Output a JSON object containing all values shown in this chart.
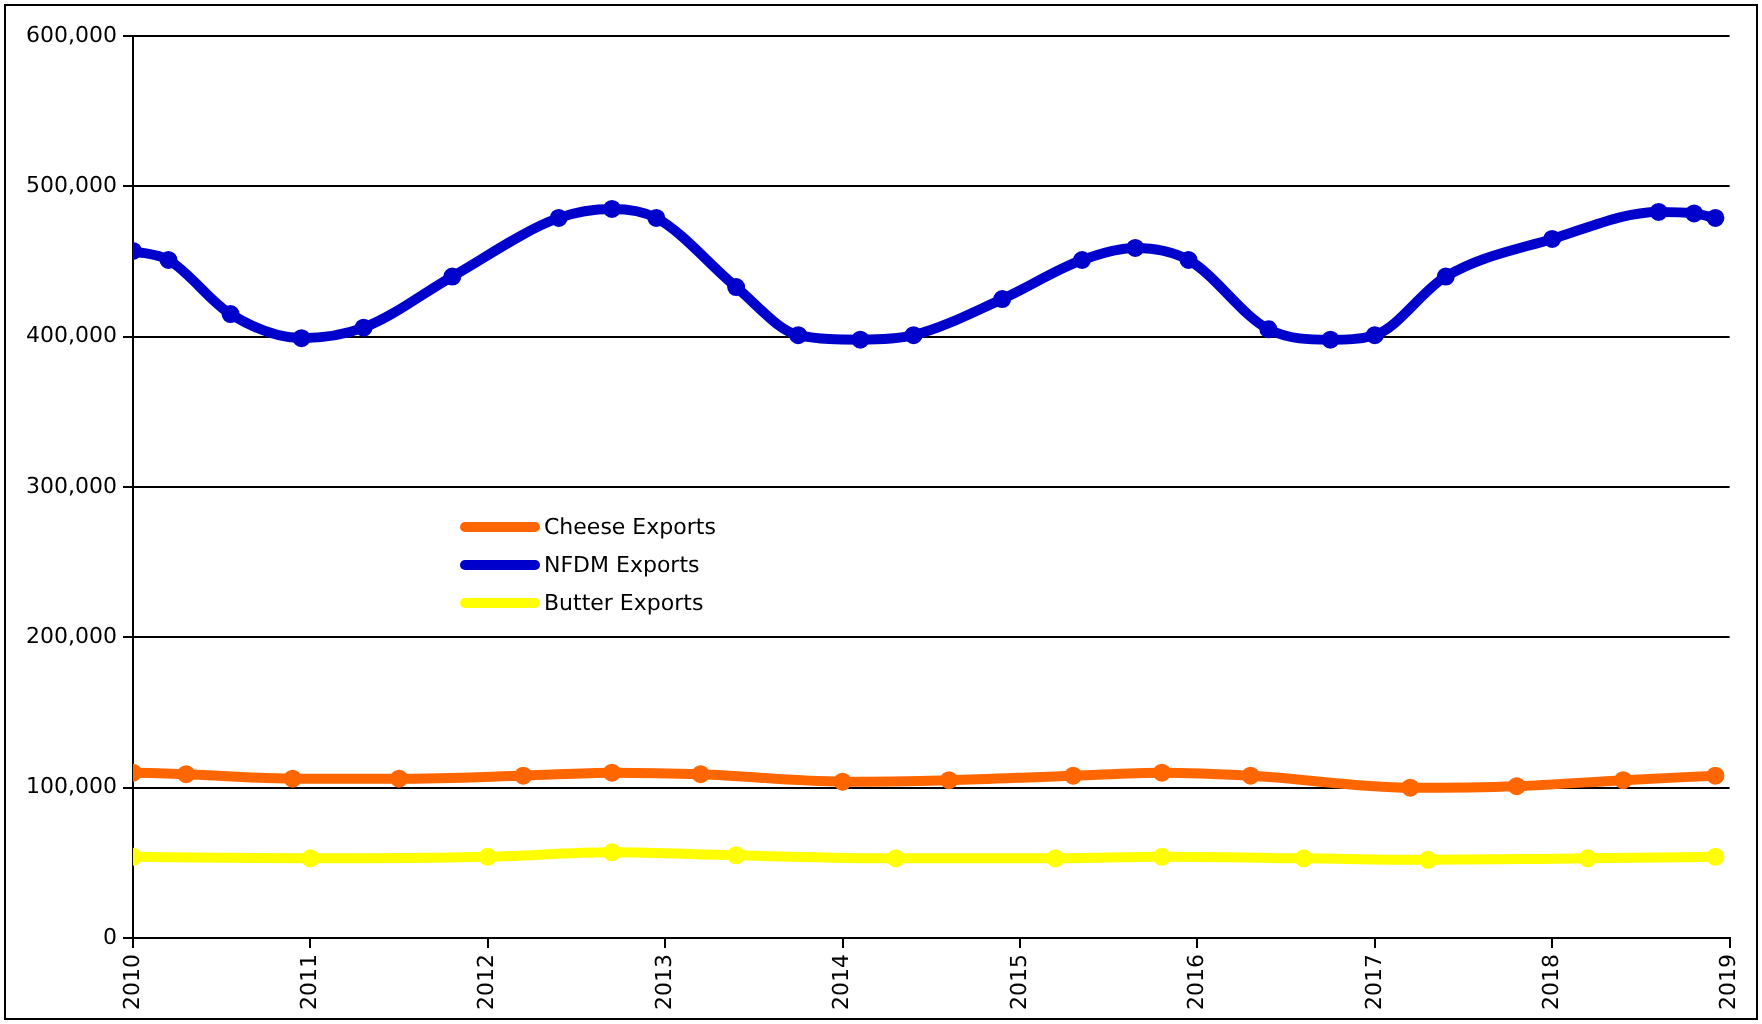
{
  "chart_data": {
    "type": "line",
    "xlim": [
      2010,
      2019
    ],
    "xticks": [
      2010,
      2011,
      2012,
      2013,
      2014,
      2015,
      2016,
      2017,
      2018,
      2019
    ],
    "ylim": [
      0,
      600000
    ],
    "yticks": [
      0,
      {
        "value": 100000,
        "label": "100,000"
      },
      {
        "value": 200000,
        "label": "200,000"
      },
      {
        "value": 300000,
        "label": "300,000"
      },
      {
        "value": 400000,
        "label": "400,000"
      },
      {
        "value": 500000,
        "label": "500,000"
      },
      {
        "value": 600000,
        "label": "600,000"
      }
    ],
    "grid": "y",
    "legend": "left",
    "marker": "circle",
    "line_style": "solid",
    "series": [
      {
        "name": "Cheese Exports",
        "color": "#ff6600",
        "x": [
          2010,
          2010.3,
          2010.9,
          2011.5,
          2012.2,
          2012.7,
          2013.2,
          2014.0,
          2014.6,
          2015.3,
          2015.8,
          2016.3,
          2017.2,
          2017.8,
          2018.4,
          2018.92
        ],
        "values": [
          110000,
          109000,
          106000,
          106000,
          108000,
          110000,
          109000,
          104000,
          105000,
          108000,
          110000,
          108000,
          100000,
          101000,
          105000,
          108000
        ]
      },
      {
        "name": "NFDM Exports",
        "color": "#0000cc",
        "x": [
          2010,
          2010.2,
          2010.55,
          2010.95,
          2011.3,
          2011.8,
          2012.4,
          2012.7,
          2012.95,
          2013.4,
          2013.75,
          2014.1,
          2014.4,
          2014.9,
          2015.35,
          2015.65,
          2015.95,
          2016.4,
          2016.75,
          2017.0,
          2017.4,
          2018.0,
          2018.6,
          2018.8,
          2018.92
        ],
        "values": [
          457000,
          451000,
          415000,
          399000,
          406000,
          440000,
          479000,
          485000,
          479000,
          433000,
          401000,
          398000,
          401000,
          425000,
          451000,
          459000,
          451000,
          405000,
          398000,
          401000,
          440000,
          465000,
          483000,
          482000,
          479000
        ]
      },
      {
        "name": "Butter Exports",
        "color": "#ffff00",
        "x": [
          2010,
          2011,
          2012.0,
          2012.7,
          2013.4,
          2014.3,
          2015.2,
          2015.8,
          2016.6,
          2017.3,
          2018.2,
          2018.92
        ],
        "values": [
          54000,
          53000,
          54000,
          57000,
          55000,
          53000,
          53000,
          54000,
          53000,
          52000,
          53000,
          54000
        ]
      }
    ]
  }
}
